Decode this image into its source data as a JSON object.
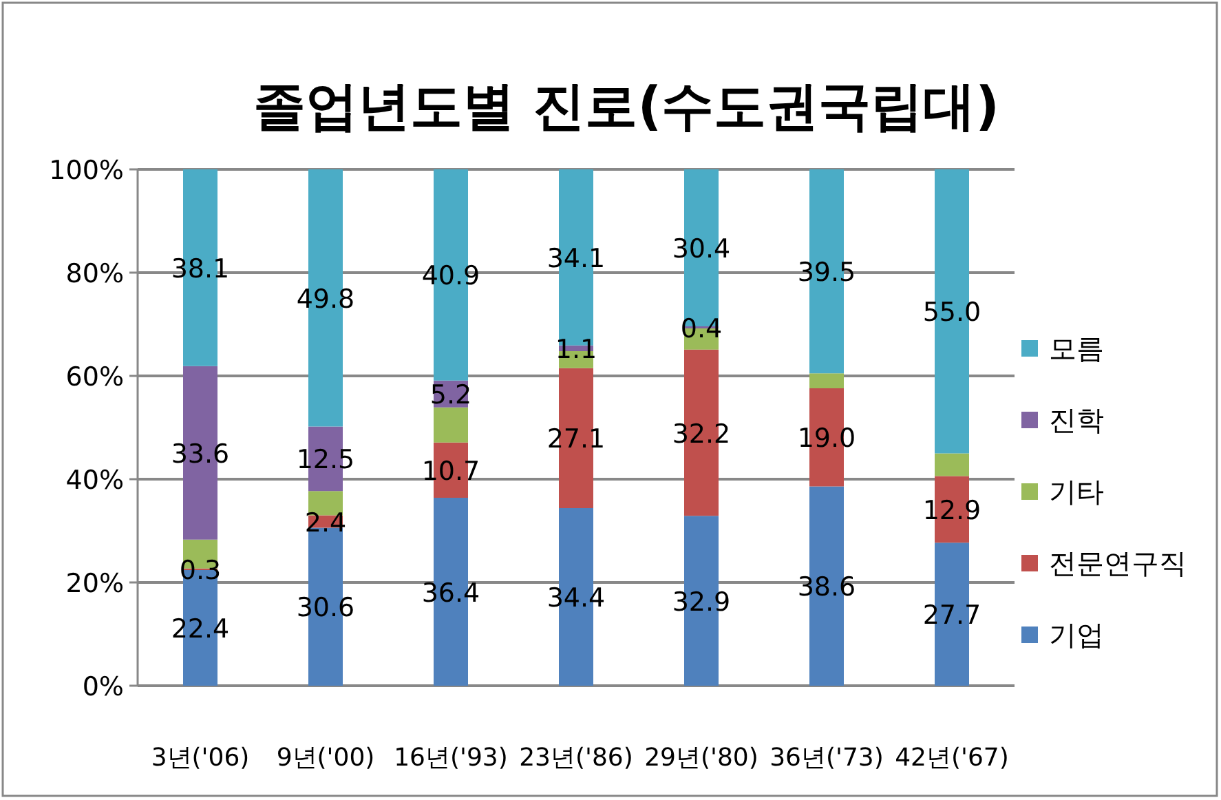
{
  "chart_data": {
    "type": "bar",
    "title": "졸업년도별 진로(수도권국립대)",
    "stacked": true,
    "grid": "y",
    "legend": "right",
    "categories": [
      "3년('06)",
      "9년('00)",
      "16년('93)",
      "23년('86)",
      "29년('80)",
      "36년('73)",
      "42년('67)"
    ],
    "ylim": [
      0,
      100
    ],
    "yticks": [
      {
        "value": 0,
        "label": "0%"
      },
      {
        "value": 20,
        "label": "20%"
      },
      {
        "value": 40,
        "label": "40%"
      },
      {
        "value": 60,
        "label": "60%"
      },
      {
        "value": 80,
        "label": "80%"
      },
      {
        "value": 100,
        "label": "100%"
      }
    ],
    "series": [
      {
        "name": "기업",
        "color": "#4f81bd",
        "values": [
          22.4,
          30.6,
          36.4,
          34.4,
          32.9,
          38.6,
          27.7
        ],
        "value_labels": [
          "22.4",
          "30.6",
          "36.4",
          "34.4",
          "32.9",
          "38.6",
          "27.7"
        ]
      },
      {
        "name": "전문연구직",
        "color": "#c0504d",
        "values": [
          0.3,
          2.4,
          10.7,
          27.1,
          32.2,
          19.0,
          12.9
        ],
        "value_labels": [
          "0.3",
          "2.4",
          "10.7",
          "27.1",
          "32.2",
          "19.0",
          "12.9"
        ]
      },
      {
        "name": "기타",
        "color": "#9bbb59",
        "values": [
          5.6,
          4.7,
          6.8,
          3.3,
          4.1,
          2.9,
          4.4
        ],
        "value_labels": [
          null,
          null,
          null,
          null,
          null,
          null,
          null
        ]
      },
      {
        "name": "진학",
        "color": "#8064a2",
        "values": [
          33.6,
          12.5,
          5.2,
          1.1,
          0.4,
          null,
          null
        ],
        "value_labels": [
          "33.6",
          "12.5",
          "5.2",
          "1.1",
          "0.4",
          null,
          null
        ]
      },
      {
        "name": "모름",
        "color": "#4bacc6",
        "values": [
          38.1,
          49.8,
          40.9,
          34.1,
          30.4,
          39.5,
          55.0
        ],
        "value_labels": [
          "38.1",
          "49.8",
          "40.9",
          "34.1",
          "30.4",
          "39.5",
          "55.0"
        ]
      }
    ]
  }
}
